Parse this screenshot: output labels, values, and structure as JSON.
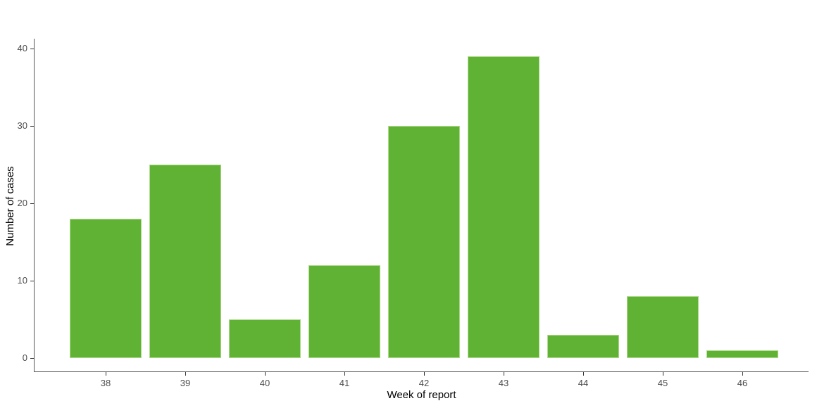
{
  "chart_data": {
    "type": "bar",
    "categories": [
      "38",
      "39",
      "40",
      "41",
      "42",
      "43",
      "44",
      "45",
      "46"
    ],
    "values": [
      18,
      25,
      5,
      12,
      30,
      39,
      3,
      8,
      1
    ],
    "title": "",
    "xlabel": "Week of report",
    "ylabel": "Number of cases",
    "yticks": [
      0,
      10,
      20,
      30,
      40
    ],
    "ylim": [
      0,
      41
    ],
    "grid": false,
    "legend_position": "none",
    "colors": {
      "bar_fill": "#5FB233",
      "bar_edge": "#AED98A",
      "axis_line": "#565656",
      "tick_mark": "#333333",
      "tick_label": "#4D4D4D",
      "axis_title": "#000000",
      "background": "#FFFFFF"
    }
  }
}
